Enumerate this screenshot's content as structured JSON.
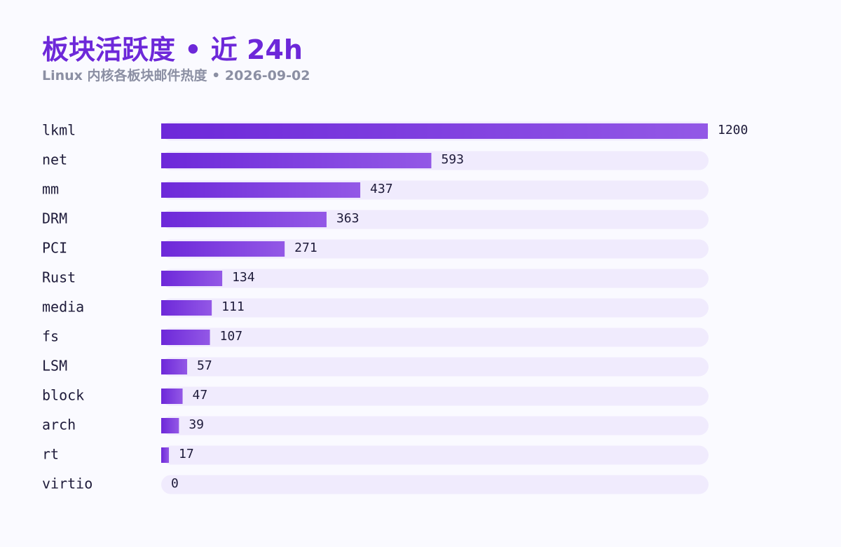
{
  "header": {
    "title": "板块活跃度 • 近 24h",
    "subtitle": "Linux 内核各板块邮件热度 • 2026-09-02"
  },
  "colors": {
    "bar_start": "#6d28d9",
    "bar_end": "#9358e6",
    "track": "#f0ebfd",
    "title": "#6d28d9",
    "subtitle": "#8b8fa3",
    "text": "#1e1b3a"
  },
  "chart_data": {
    "type": "bar",
    "orientation": "horizontal",
    "categories": [
      "lkml",
      "net",
      "mm",
      "DRM",
      "PCI",
      "Rust",
      "media",
      "fs",
      "LSM",
      "block",
      "arch",
      "rt",
      "virtio"
    ],
    "values": [
      1200,
      593,
      437,
      363,
      271,
      134,
      111,
      107,
      57,
      47,
      39,
      17,
      0
    ],
    "xlim": [
      0,
      1200
    ],
    "grid": false,
    "legend": "none",
    "data_labels": true
  }
}
